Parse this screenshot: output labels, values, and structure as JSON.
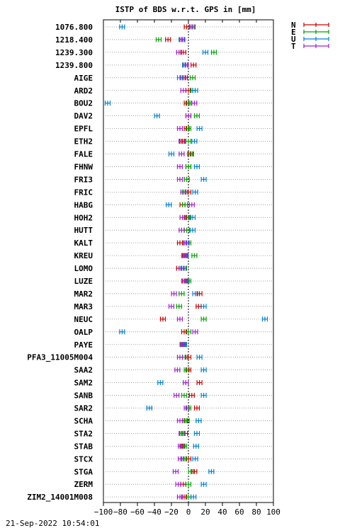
{
  "chart_data": {
    "type": "scatter",
    "title": "ISTP of BDS w.r.t. GPS in [mm]",
    "footer": "21-Sep-2022 10:54:01",
    "xlim": [
      -100,
      100
    ],
    "x_ticks": [
      -100,
      -80,
      -60,
      -40,
      -20,
      0,
      20,
      40,
      60,
      80,
      100
    ],
    "grid": "horizontal dotted lines per station",
    "legend_placement": "top-right",
    "series": [
      {
        "name": "N",
        "color": "#cc0000"
      },
      {
        "name": "E",
        "color": "#00a000"
      },
      {
        "name": "U",
        "color": "#0080d0"
      },
      {
        "name": "T",
        "color": "#a020d0"
      }
    ],
    "categories": [
      "1076.800",
      "1218.400",
      "1239.300",
      "1239.800",
      "AIGE",
      "ARD2",
      "BOU2",
      "DAV2",
      "EPFL",
      "ETH2",
      "FALE",
      "FHNW",
      "FRI3",
      "FRIC",
      "HABG",
      "HOH2",
      "HUTT",
      "KALT",
      "KREU",
      "LOMO",
      "LUZE",
      "MAR2",
      "MAR3",
      "NEUC",
      "OALP",
      "PAYE",
      "PFA3_11005M004",
      "SAA2",
      "SAM2",
      "SANB",
      "SAR2",
      "SCHA",
      "STA2",
      "STAB",
      "STCX",
      "STGA",
      "ZERM",
      "ZIM2_14001M008"
    ],
    "values": [
      [
        -2,
        4,
        -78,
        5
      ],
      [
        -24,
        -35,
        -8,
        -7
      ],
      [
        -6,
        30,
        20,
        -11
      ],
      [
        6,
        -4,
        -4,
        -3
      ],
      [
        -4,
        5,
        -10,
        -6
      ],
      [
        0,
        5,
        8,
        -6
      ],
      [
        -2,
        0,
        -95,
        7
      ],
      [
        0,
        10,
        -37,
        0
      ],
      [
        -2,
        0,
        13,
        -10
      ],
      [
        -7,
        0,
        7,
        -8
      ],
      [
        3,
        2,
        -20,
        -8
      ],
      [
        0,
        0,
        10,
        -10
      ],
      [
        -2,
        -2,
        18,
        -10
      ],
      [
        0,
        -4,
        8,
        -6
      ],
      [
        -7,
        -4,
        -23,
        4
      ],
      [
        -2,
        0,
        5,
        -7
      ],
      [
        -2,
        -2,
        5,
        -8
      ],
      [
        -10,
        0,
        -3,
        -2
      ],
      [
        -4,
        7,
        -3,
        -5
      ],
      [
        -11,
        -5,
        -6,
        -8
      ],
      [
        -4,
        0,
        -2,
        -5
      ],
      [
        13,
        -8,
        8,
        -17
      ],
      [
        12,
        -11,
        18,
        -20
      ],
      [
        -30,
        18,
        90,
        -10
      ],
      [
        -5,
        0,
        -78,
        8
      ],
      [
        -6,
        -6,
        -5,
        -7
      ],
      [
        0,
        -4,
        13,
        -10
      ],
      [
        0,
        -2,
        18,
        -13
      ],
      [
        13,
        -3,
        -33,
        -3
      ],
      [
        4,
        -5,
        18,
        -14
      ],
      [
        10,
        0,
        -46,
        -2
      ],
      [
        -4,
        -2,
        12,
        -10
      ],
      [
        -4,
        -7,
        10,
        -8
      ],
      [
        -7,
        -5,
        9,
        -9
      ],
      [
        0,
        -5,
        8,
        -9
      ],
      [
        7,
        3,
        27,
        -15
      ],
      [
        -6,
        0,
        18,
        -12
      ],
      [
        -5,
        0,
        6,
        -10
      ]
    ]
  }
}
